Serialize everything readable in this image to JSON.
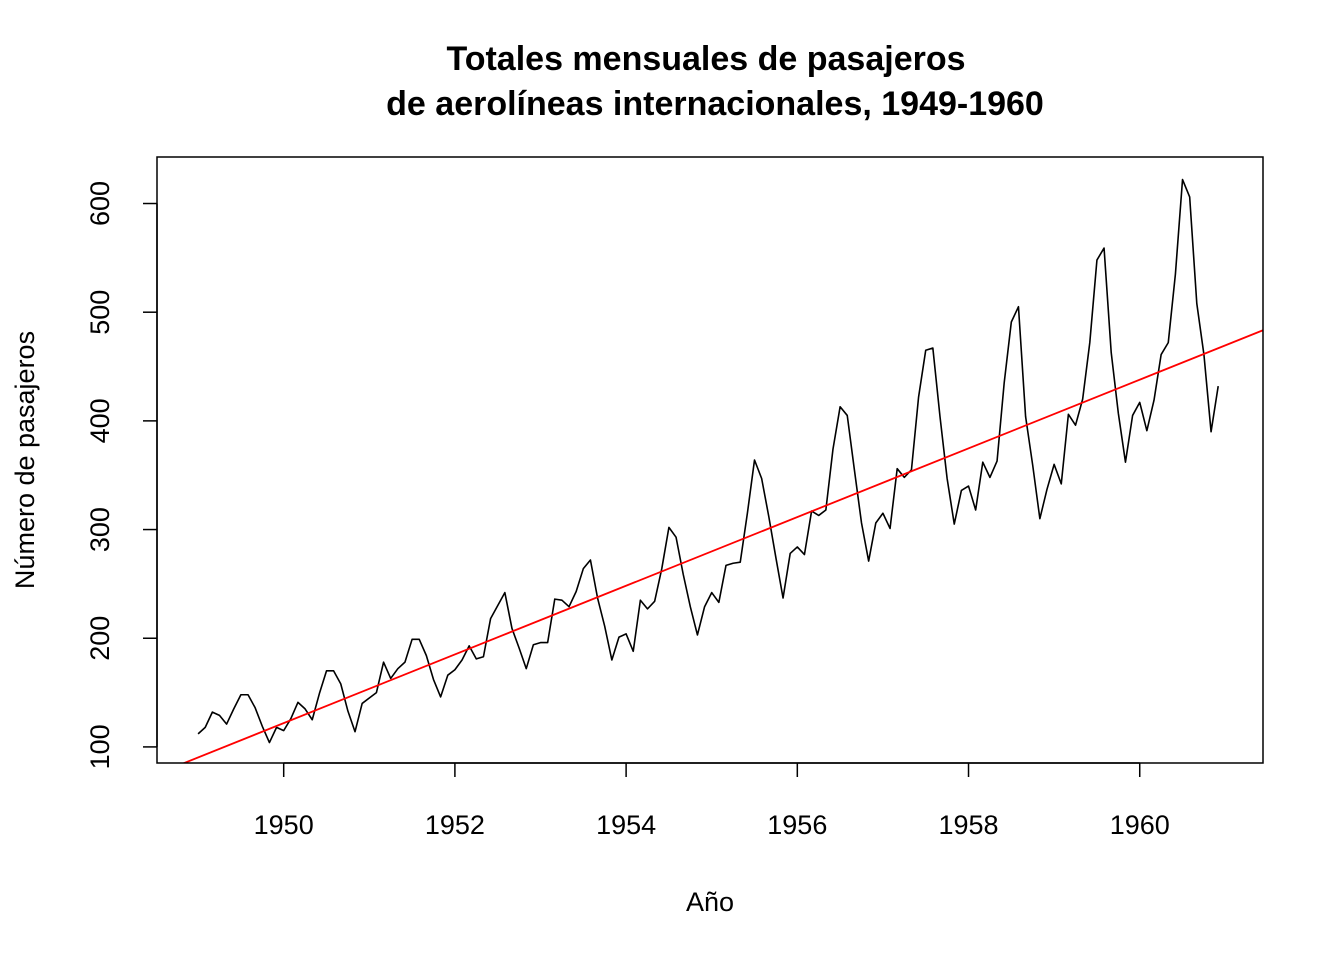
{
  "chart_data": {
    "type": "line",
    "title": [
      "Totales mensuales de pasajeros",
      "de aerolíneas internacionales, 1949-1960"
    ],
    "xlabel": "Año",
    "ylabel": "Número de pasajeros",
    "xlim": [
      1948.52,
      1961.44
    ],
    "ylim": [
      85.2,
      642.8
    ],
    "x_ticks": [
      1950,
      1952,
      1954,
      1956,
      1958,
      1960
    ],
    "x_tick_labels": [
      "1950",
      "1952",
      "1954",
      "1956",
      "1958",
      "1960"
    ],
    "y_ticks": [
      100,
      200,
      300,
      400,
      500,
      600
    ],
    "y_tick_labels": [
      "100",
      "200",
      "300",
      "400",
      "500",
      "600"
    ],
    "grid": false,
    "legend": "none",
    "colors": {
      "series": "#000000",
      "trend": "#ff0000",
      "frame": "#000000"
    },
    "series": [
      {
        "x_start": 1949.0,
        "x_step": 0.0833333,
        "values": [
          112,
          118,
          132,
          129,
          121,
          135,
          148,
          148,
          136,
          119,
          104,
          118,
          115,
          126,
          141,
          135,
          125,
          149,
          170,
          170,
          158,
          133,
          114,
          140,
          145,
          150,
          178,
          163,
          172,
          178,
          199,
          199,
          184,
          162,
          146,
          166,
          171,
          180,
          193,
          181,
          183,
          218,
          230,
          242,
          209,
          191,
          172,
          194,
          196,
          196,
          236,
          235,
          229,
          243,
          264,
          272,
          237,
          211,
          180,
          201,
          204,
          188,
          235,
          227,
          234,
          264,
          302,
          293,
          259,
          229,
          203,
          229,
          242,
          233,
          267,
          269,
          270,
          315,
          364,
          347,
          312,
          274,
          237,
          278,
          284,
          277,
          317,
          313,
          318,
          374,
          413,
          405,
          355,
          306,
          271,
          306,
          315,
          301,
          356,
          348,
          355,
          422,
          465,
          467,
          404,
          347,
          305,
          336,
          340,
          318,
          362,
          348,
          363,
          435,
          491,
          505,
          404,
          359,
          310,
          337,
          360,
          342,
          406,
          396,
          420,
          472,
          548,
          559,
          463,
          407,
          362,
          405,
          417,
          391,
          419,
          461,
          472,
          535,
          622,
          606,
          508,
          461,
          390,
          432
        ]
      }
    ],
    "trend_line": {
      "intercept_at_1949": 90.3,
      "slope_per_year": 31.6
    }
  }
}
